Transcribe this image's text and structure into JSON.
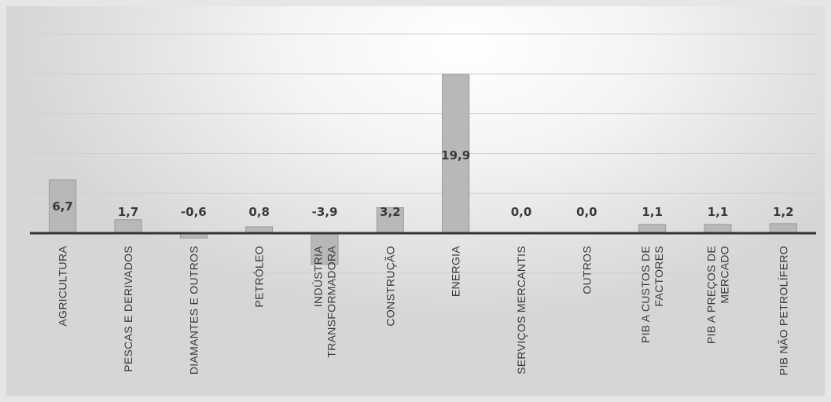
{
  "chart_data": {
    "type": "bar",
    "categories": [
      [
        "AGRICULTURA"
      ],
      [
        "PESCAS E DERIVADOS"
      ],
      [
        "DIAMANTES E OUTROS"
      ],
      [
        "PETRÓLEO"
      ],
      [
        "INDÚSTRIA",
        "TRANSFORMADORA"
      ],
      [
        "CONSTRUÇÃO"
      ],
      [
        "ENERGIA"
      ],
      [
        "SERVIÇOS MERCANTIS"
      ],
      [
        "OUTROS"
      ],
      [
        "PIB A CUSTOS DE",
        "FACTORES"
      ],
      [
        "PIB A PREÇOS DE",
        "MERCADO"
      ],
      [
        "PIB NÃO PETROLÍFERO"
      ]
    ],
    "values": [
      6.7,
      1.7,
      -0.6,
      0.8,
      -3.9,
      3.2,
      19.9,
      0.0,
      0.0,
      1.1,
      1.1,
      1.2
    ],
    "value_labels": [
      "6,7",
      "1,7",
      "-0,6",
      "0,8",
      "-3,9",
      "3,2",
      "19,9",
      "0,0",
      "0,0",
      "1,1",
      "1,1",
      "1,2"
    ],
    "ylim": [
      -10,
      25
    ],
    "grid": true,
    "colors": {
      "bar": "#b8b8b8",
      "bar_edge": "#9a9a9a",
      "axis": "#333333",
      "grid": "#d0d0d0"
    }
  }
}
